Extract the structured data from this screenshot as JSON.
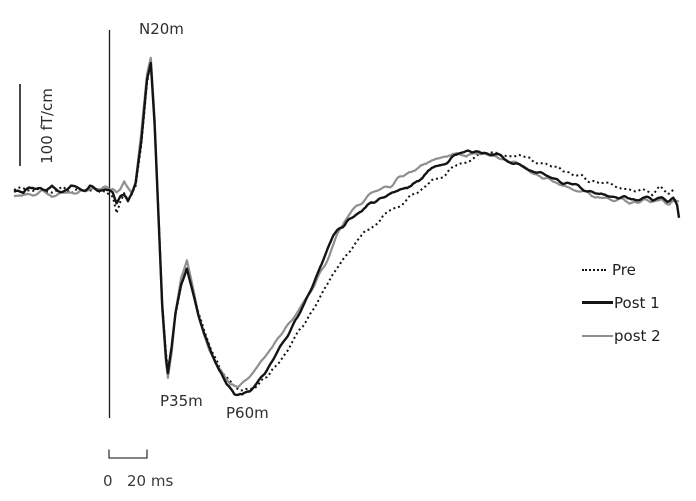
{
  "chart_data": {
    "type": "line",
    "title": "",
    "x_unit": "ms",
    "y_unit": "fT/cm",
    "x_range_ms": [
      -50,
      300
    ],
    "stimulus_onset_ms": 0,
    "grid": false,
    "axes_drawn": false,
    "legend_position": "right",
    "peak_labels": [
      {
        "label": "N20m",
        "time_ms": 22
      },
      {
        "label": "P35m",
        "time_ms": 31
      },
      {
        "label": "P60m",
        "time_ms": 70
      }
    ],
    "amplitude_scale_bar": {
      "label": "100 fT/cm",
      "value_ft_per_cm": 100
    },
    "time_scale_bar": {
      "zero_label": "0",
      "span_label": "20 ms",
      "span_ms": 20
    },
    "colors": {
      "trace_black": "#141414",
      "trace_gray": "#8f8f8f"
    },
    "legend": [
      {
        "label": "Pre",
        "style": "dotted",
        "color": "#141414"
      },
      {
        "label": "Post 1",
        "style": "solid",
        "color": "#141414"
      },
      {
        "label": "post 2",
        "style": "solid",
        "color": "#8f8f8f"
      }
    ],
    "series": [
      {
        "name": "Pre",
        "style": "dotted",
        "color": "#141414",
        "points_ms_ft": [
          [
            -50,
            0
          ],
          [
            -45,
            2
          ],
          [
            -40,
            -2
          ],
          [
            -35,
            2
          ],
          [
            -30,
            -2
          ],
          [
            -25,
            1
          ],
          [
            -20,
            -2
          ],
          [
            -15,
            1
          ],
          [
            -10,
            -2
          ],
          [
            -6,
            1
          ],
          [
            -2,
            -2
          ],
          [
            2,
            -8
          ],
          [
            4,
            -27
          ],
          [
            6,
            -14
          ],
          [
            8,
            -6
          ],
          [
            10,
            -12
          ],
          [
            12,
            -4
          ],
          [
            14,
            5
          ],
          [
            17,
            55
          ],
          [
            20,
            130
          ],
          [
            22,
            158
          ],
          [
            24,
            85
          ],
          [
            26,
            -25
          ],
          [
            28,
            -138
          ],
          [
            30,
            -200
          ],
          [
            31,
            -219
          ],
          [
            33,
            -192
          ],
          [
            35,
            -152
          ],
          [
            38,
            -116
          ],
          [
            41,
            -92
          ],
          [
            44,
            -120
          ],
          [
            47,
            -150
          ],
          [
            50,
            -172
          ],
          [
            54,
            -196
          ],
          [
            58,
            -216
          ],
          [
            62,
            -230
          ],
          [
            66,
            -240
          ],
          [
            70,
            -244
          ],
          [
            74,
            -242
          ],
          [
            78,
            -238
          ],
          [
            84,
            -226
          ],
          [
            90,
            -208
          ],
          [
            96,
            -188
          ],
          [
            102,
            -166
          ],
          [
            108,
            -142
          ],
          [
            114,
            -118
          ],
          [
            120,
            -95
          ],
          [
            126,
            -75
          ],
          [
            132,
            -58
          ],
          [
            138,
            -45
          ],
          [
            144,
            -33
          ],
          [
            150,
            -23
          ],
          [
            156,
            -13
          ],
          [
            162,
            -4
          ],
          [
            168,
            6
          ],
          [
            174,
            16
          ],
          [
            180,
            26
          ],
          [
            186,
            34
          ],
          [
            192,
            40
          ],
          [
            198,
            44
          ],
          [
            204,
            46
          ],
          [
            210,
            44
          ],
          [
            216,
            41
          ],
          [
            222,
            37
          ],
          [
            228,
            32
          ],
          [
            234,
            27
          ],
          [
            240,
            23
          ],
          [
            246,
            18
          ],
          [
            252,
            14
          ],
          [
            258,
            9
          ],
          [
            264,
            5
          ],
          [
            270,
            2
          ],
          [
            276,
            0
          ],
          [
            281,
            2
          ],
          [
            286,
            -2
          ],
          [
            290,
            3
          ],
          [
            294,
            -3
          ],
          [
            297,
            0
          ]
        ]
      },
      {
        "name": "Post 1",
        "style": "solid",
        "color": "#141414",
        "points_ms_ft": [
          [
            -50,
            3
          ],
          [
            -45,
            -2
          ],
          [
            -40,
            4
          ],
          [
            -35,
            -1
          ],
          [
            -30,
            3
          ],
          [
            -25,
            -2
          ],
          [
            -20,
            2
          ],
          [
            -15,
            -2
          ],
          [
            -10,
            2
          ],
          [
            -6,
            -2
          ],
          [
            -2,
            1
          ],
          [
            2,
            -4
          ],
          [
            4,
            -16
          ],
          [
            6,
            -8
          ],
          [
            8,
            -3
          ],
          [
            10,
            -9
          ],
          [
            12,
            -3
          ],
          [
            14,
            8
          ],
          [
            17,
            60
          ],
          [
            20,
            135
          ],
          [
            22,
            155
          ],
          [
            24,
            80
          ],
          [
            26,
            -30
          ],
          [
            28,
            -140
          ],
          [
            30,
            -205
          ],
          [
            31,
            -222
          ],
          [
            33,
            -190
          ],
          [
            35,
            -150
          ],
          [
            38,
            -115
          ],
          [
            41,
            -97
          ],
          [
            44,
            -125
          ],
          [
            47,
            -152
          ],
          [
            50,
            -175
          ],
          [
            54,
            -200
          ],
          [
            58,
            -220
          ],
          [
            62,
            -236
          ],
          [
            66,
            -246
          ],
          [
            70,
            -249
          ],
          [
            74,
            -245
          ],
          [
            78,
            -234
          ],
          [
            82,
            -222
          ],
          [
            86,
            -208
          ],
          [
            90,
            -192
          ],
          [
            94,
            -178
          ],
          [
            98,
            -158
          ],
          [
            102,
            -142
          ],
          [
            106,
            -124
          ],
          [
            110,
            -102
          ],
          [
            114,
            -78
          ],
          [
            118,
            -56
          ],
          [
            122,
            -45
          ],
          [
            127,
            -36
          ],
          [
            132,
            -25
          ],
          [
            137,
            -17
          ],
          [
            142,
            -11
          ],
          [
            147,
            -5
          ],
          [
            152,
            -1
          ],
          [
            157,
            3
          ],
          [
            162,
            10
          ],
          [
            168,
            22
          ],
          [
            174,
            32
          ],
          [
            180,
            39
          ],
          [
            186,
            44
          ],
          [
            192,
            47
          ],
          [
            198,
            46
          ],
          [
            204,
            42
          ],
          [
            210,
            36
          ],
          [
            216,
            31
          ],
          [
            220,
            28
          ],
          [
            226,
            22
          ],
          [
            232,
            16
          ],
          [
            238,
            11
          ],
          [
            244,
            6
          ],
          [
            250,
            2
          ],
          [
            256,
            -2
          ],
          [
            262,
            -6
          ],
          [
            268,
            -9
          ],
          [
            274,
            -10
          ],
          [
            280,
            -11
          ],
          [
            286,
            -13
          ],
          [
            291,
            -9
          ],
          [
            294,
            -13
          ],
          [
            297,
            -11
          ],
          [
            299,
            -18
          ],
          [
            300,
            -32
          ]
        ]
      },
      {
        "name": "post 2",
        "style": "solid",
        "color": "#8f8f8f",
        "points_ms_ft": [
          [
            -50,
            -8
          ],
          [
            -45,
            -5
          ],
          [
            -40,
            -8
          ],
          [
            -35,
            -4
          ],
          [
            -30,
            -7
          ],
          [
            -25,
            -3
          ],
          [
            -20,
            -5
          ],
          [
            -15,
            -2
          ],
          [
            -10,
            1
          ],
          [
            -6,
            3
          ],
          [
            -2,
            2
          ],
          [
            2,
            2
          ],
          [
            4,
            -4
          ],
          [
            6,
            0
          ],
          [
            8,
            10
          ],
          [
            10,
            2
          ],
          [
            12,
            -5
          ],
          [
            14,
            10
          ],
          [
            17,
            70
          ],
          [
            20,
            140
          ],
          [
            22,
            161
          ],
          [
            24,
            88
          ],
          [
            26,
            -25
          ],
          [
            28,
            -145
          ],
          [
            30,
            -210
          ],
          [
            31,
            -228
          ],
          [
            33,
            -198
          ],
          [
            35,
            -148
          ],
          [
            38,
            -106
          ],
          [
            41,
            -86
          ],
          [
            44,
            -118
          ],
          [
            47,
            -150
          ],
          [
            50,
            -176
          ],
          [
            53,
            -196
          ],
          [
            57,
            -214
          ],
          [
            61,
            -228
          ],
          [
            64,
            -236
          ],
          [
            68,
            -236
          ],
          [
            72,
            -230
          ],
          [
            76,
            -221
          ],
          [
            80,
            -208
          ],
          [
            84,
            -196
          ],
          [
            88,
            -185
          ],
          [
            92,
            -173
          ],
          [
            96,
            -160
          ],
          [
            100,
            -146
          ],
          [
            104,
            -132
          ],
          [
            108,
            -116
          ],
          [
            112,
            -98
          ],
          [
            116,
            -80
          ],
          [
            120,
            -56
          ],
          [
            124,
            -38
          ],
          [
            128,
            -26
          ],
          [
            132,
            -17
          ],
          [
            136,
            -9
          ],
          [
            140,
            -3
          ],
          [
            144,
            2
          ],
          [
            148,
            7
          ],
          [
            152,
            12
          ],
          [
            156,
            17
          ],
          [
            160,
            23
          ],
          [
            164,
            28
          ],
          [
            168,
            33
          ],
          [
            172,
            38
          ],
          [
            176,
            42
          ],
          [
            180,
            44
          ],
          [
            184,
            46
          ],
          [
            188,
            42
          ],
          [
            192,
            47
          ],
          [
            196,
            42
          ],
          [
            200,
            45
          ],
          [
            204,
            41
          ],
          [
            208,
            39
          ],
          [
            212,
            36
          ],
          [
            216,
            32
          ],
          [
            220,
            26
          ],
          [
            226,
            18
          ],
          [
            232,
            12
          ],
          [
            238,
            7
          ],
          [
            244,
            2
          ],
          [
            250,
            -3
          ],
          [
            256,
            -8
          ],
          [
            262,
            -11
          ],
          [
            268,
            -13
          ],
          [
            274,
            -15
          ],
          [
            280,
            -15
          ],
          [
            286,
            -17
          ],
          [
            291,
            -14
          ],
          [
            295,
            -17
          ],
          [
            298,
            -14
          ],
          [
            300,
            -15
          ]
        ]
      }
    ]
  }
}
